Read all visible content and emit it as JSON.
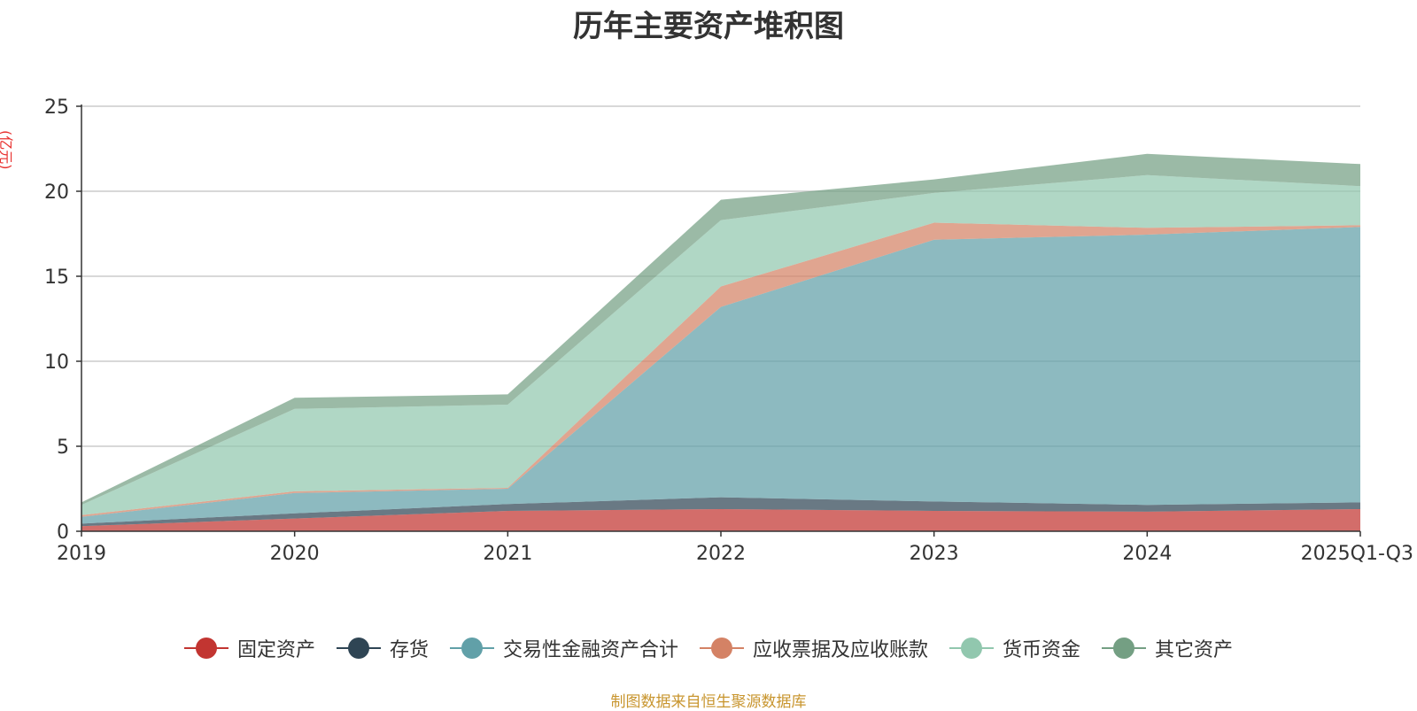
{
  "chart_data": {
    "type": "area",
    "stacked": true,
    "title": "历年主要资产堆积图",
    "ylabel": "(亿元)",
    "xlabel": "",
    "categories": [
      "2019",
      "2020",
      "2021",
      "2022",
      "2023",
      "2024",
      "2025Q1-Q3"
    ],
    "ylim": [
      0,
      25
    ],
    "yticks": [
      0,
      5,
      10,
      15,
      20,
      25
    ],
    "grid": true,
    "legend_position": "bottom",
    "series": [
      {
        "name": "固定资产",
        "color": "#c23531",
        "values": [
          0.3,
          0.75,
          1.2,
          1.3,
          1.2,
          1.15,
          1.3
        ]
      },
      {
        "name": "存货",
        "color": "#2f4554",
        "values": [
          0.15,
          0.3,
          0.4,
          0.7,
          0.55,
          0.4,
          0.4
        ]
      },
      {
        "name": "交易性金融资产合计",
        "color": "#61a0a8",
        "values": [
          0.4,
          1.2,
          0.9,
          11.2,
          15.4,
          15.9,
          16.2
        ]
      },
      {
        "name": "应收票据及应收账款",
        "color": "#d48265",
        "values": [
          0.1,
          0.1,
          0.05,
          1.2,
          1.0,
          0.4,
          0.1
        ]
      },
      {
        "name": "货币资金",
        "color": "#91c7ae",
        "values": [
          0.6,
          4.85,
          4.9,
          3.9,
          1.75,
          3.1,
          2.3
        ]
      },
      {
        "name": "其它资产",
        "color": "#749f83",
        "values": [
          0.15,
          0.65,
          0.6,
          1.2,
          0.8,
          1.25,
          1.3
        ]
      }
    ]
  },
  "source_note": "制图数据来自恒生聚源数据库"
}
